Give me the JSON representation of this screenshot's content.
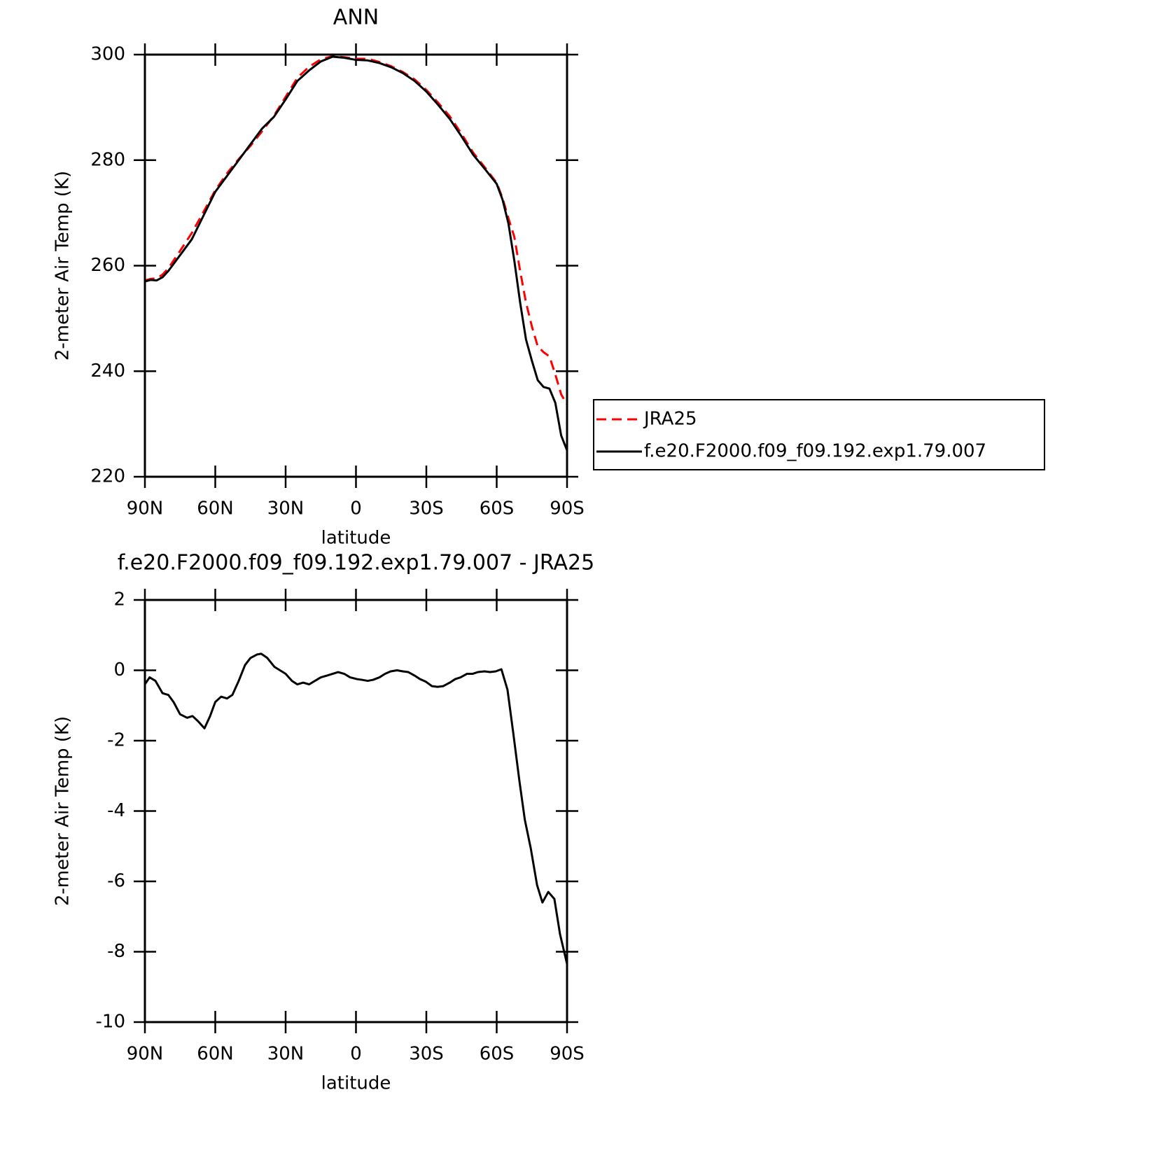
{
  "chart_data": [
    {
      "type": "line",
      "title": "ANN",
      "xlabel": "latitude",
      "ylabel": "2-meter Air Temp (K)",
      "x": [
        90,
        87.5,
        85,
        82.5,
        80,
        75,
        70,
        65,
        60,
        55,
        50,
        45,
        40,
        35,
        30,
        25,
        20,
        15,
        10,
        5,
        0,
        -5,
        -10,
        -15,
        -20,
        -25,
        -30,
        -35,
        -40,
        -45,
        -50,
        -55,
        -60,
        -62.5,
        -65,
        -67.5,
        -70,
        -72.5,
        -75,
        -77.5,
        -80,
        -82.5,
        -85,
        -87.5,
        -90
      ],
      "series": [
        {
          "name": "JRA25",
          "color": "#ff0000",
          "line_style": "dashed",
          "values": [
            257.2,
            257.5,
            257.6,
            258.3,
            259.5,
            262.8,
            266.2,
            270.2,
            274.3,
            277.5,
            280.2,
            282.7,
            285.5,
            288.4,
            292,
            295.6,
            297.7,
            299.1,
            299.7,
            299.5,
            299.2,
            299.2,
            298.6,
            297.8,
            296.7,
            295.3,
            293.3,
            290.9,
            288.3,
            285,
            281.4,
            278.6,
            275.7,
            272.8,
            269,
            265.5,
            259,
            253,
            248.5,
            244.7,
            243.6,
            242.8,
            239.4,
            235.6,
            233.7
          ]
        },
        {
          "name": "f.e20.F2000.f09_f09.192.exp1.79.007",
          "color": "#000000",
          "line_style": "solid",
          "values": [
            257,
            257.3,
            257.2,
            257.8,
            259,
            262,
            265,
            269.5,
            274,
            277,
            280,
            283,
            286,
            288.2,
            291.5,
            295,
            297,
            298.7,
            299.6,
            299.4,
            299,
            298.9,
            298.4,
            297.6,
            296.5,
            295,
            293,
            290.5,
            287.8,
            284.5,
            281,
            278.3,
            275.5,
            272.5,
            268,
            261,
            253,
            246,
            242,
            238.3,
            237,
            236.7,
            234,
            227.8,
            225
          ]
        }
      ],
      "xlim": [
        90,
        -90
      ],
      "ylim": [
        220,
        300
      ],
      "xticks": [
        {
          "value": 90,
          "label": "90N"
        },
        {
          "value": 60,
          "label": "60N"
        },
        {
          "value": 30,
          "label": "30N"
        },
        0,
        {
          "value": -30,
          "label": "30S"
        },
        {
          "value": -60,
          "label": "60S"
        },
        {
          "value": -90,
          "label": "90S"
        }
      ],
      "yticks": [
        220,
        240,
        260,
        280,
        300
      ],
      "legend": "right"
    },
    {
      "type": "line",
      "title": "f.e20.F2000.f09_f09.192.exp1.79.007 - JRA25",
      "xlabel": "latitude",
      "ylabel": "2-meter Air Temp (K)",
      "x": [
        90,
        88,
        85.5,
        82.5,
        80,
        77.8,
        75,
        72,
        69.7,
        67.3,
        64.6,
        62.2,
        60,
        57.5,
        55,
        52.7,
        50,
        47.3,
        45,
        42.2,
        40.4,
        37.8,
        34.8,
        32.4,
        30,
        27.3,
        25,
        22.5,
        20,
        17.5,
        15,
        12.4,
        10,
        7.6,
        5,
        2.5,
        -0.4,
        -2.5,
        -5,
        -7.3,
        -10,
        -12.4,
        -14.8,
        -17.5,
        -20,
        -22.3,
        -25,
        -27.3,
        -29.7,
        -32.4,
        -34.8,
        -37.2,
        -40,
        -42.3,
        -44.6,
        -47.3,
        -49.7,
        -52,
        -54.8,
        -57.2,
        -59.6,
        -62,
        -64.6,
        -67,
        -69.7,
        -72,
        -74.5,
        -77.2,
        -79.5,
        -82,
        -84.6,
        -87,
        -90
      ],
      "values": [
        -0.4,
        -0.2,
        -0.3,
        -0.65,
        -0.7,
        -0.9,
        -1.25,
        -1.35,
        -1.3,
        -1.45,
        -1.65,
        -1.3,
        -0.9,
        -0.75,
        -0.8,
        -0.7,
        -0.3,
        0.15,
        0.35,
        0.45,
        0.47,
        0.35,
        0.1,
        0,
        -0.1,
        -0.3,
        -0.4,
        -0.35,
        -0.4,
        -0.3,
        -0.2,
        -0.15,
        -0.1,
        -0.05,
        -0.1,
        -0.2,
        -0.25,
        -0.27,
        -0.3,
        -0.27,
        -0.2,
        -0.1,
        -0.03,
        0,
        -0.03,
        -0.05,
        -0.15,
        -0.25,
        -0.32,
        -0.45,
        -0.47,
        -0.45,
        -0.35,
        -0.25,
        -0.2,
        -0.1,
        -0.1,
        -0.05,
        -0.03,
        -0.05,
        -0.03,
        0.03,
        -0.55,
        -1.75,
        -3.15,
        -4.25,
        -5.05,
        -6.1,
        -6.6,
        -6.3,
        -6.5,
        -7.5,
        -8.35
      ],
      "color": "#000000",
      "xlim": [
        90,
        -90
      ],
      "ylim": [
        -10,
        2
      ],
      "xticks": [
        {
          "value": 90,
          "label": "90N"
        },
        {
          "value": 60,
          "label": "60N"
        },
        {
          "value": 30,
          "label": "30N"
        },
        0,
        {
          "value": -30,
          "label": "30S"
        },
        {
          "value": -60,
          "label": "60S"
        },
        {
          "value": -90,
          "label": "90S"
        }
      ],
      "yticks": [
        -10,
        -8,
        -6,
        -4,
        -2,
        0,
        2
      ]
    }
  ]
}
